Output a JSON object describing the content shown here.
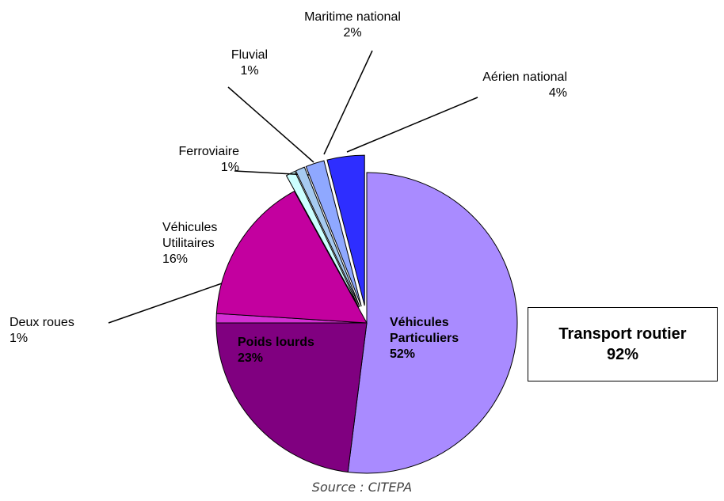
{
  "chart_data": {
    "type": "pie",
    "categories": [
      "Véhicules Particuliers",
      "Poids lourds",
      "Deux roues",
      "Véhicules Utilitaires",
      "Ferroviaire",
      "Fluvial",
      "Maritime national",
      "Aérien national"
    ],
    "values": [
      52,
      23,
      1,
      16,
      1,
      1,
      2,
      4
    ],
    "value_labels": [
      "52%",
      "23%",
      "1%",
      "16%",
      "1%",
      "1%",
      "2%",
      "4%"
    ],
    "colors": [
      "#a98bff",
      "#800080",
      "#d42fd4",
      "#c3009f",
      "#ccffff",
      "#a6caf0",
      "#8fa8ff",
      "#2e2eff"
    ],
    "exploded": [
      false,
      false,
      false,
      false,
      true,
      true,
      true,
      true
    ],
    "annotation": {
      "title": "Transport routier",
      "value": "92%"
    },
    "source": "Source : CITEPA"
  }
}
